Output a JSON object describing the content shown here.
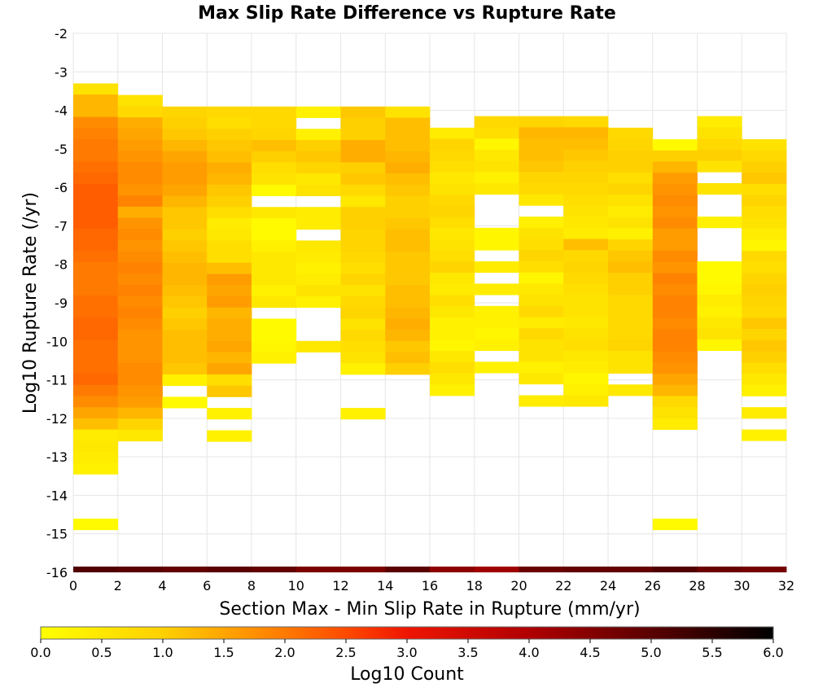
{
  "chart_data": {
    "type": "heatmap",
    "title": "Max Slip Rate Difference vs Rupture Rate",
    "xlabel": "Section Max - Min Slip Rate in Rupture (mm/yr)",
    "ylabel": "Log10 Rupture Rate (/yr)",
    "xlim": [
      0,
      32
    ],
    "ylim": [
      -16,
      -2
    ],
    "x_ticks": [
      "0",
      "2",
      "4",
      "6",
      "8",
      "10",
      "12",
      "14",
      "16",
      "18",
      "20",
      "22",
      "24",
      "26",
      "28",
      "30",
      "32"
    ],
    "y_ticks": [
      "-2",
      "-3",
      "-4",
      "-5",
      "-6",
      "-7",
      "-8",
      "-9",
      "-10",
      "-11",
      "-12",
      "-13",
      "-14",
      "-15",
      "-16"
    ],
    "x_bin_width": 2,
    "y_bin_height": 0.29,
    "grid": true,
    "colorbar": {
      "label": "Log10 Count",
      "min": 0,
      "max": 6,
      "ticks": [
        "0.0",
        "0.5",
        "1.0",
        "1.5",
        "2.0",
        "2.5",
        "3.0",
        "3.5",
        "4.0",
        "4.5",
        "5.0",
        "5.5",
        "6.0"
      ],
      "colors": [
        "#ffff00",
        "#ffd000",
        "#ffa500",
        "#ff7a00",
        "#ff4a00",
        "#ef1500",
        "#b00000",
        "#5a0000",
        "#000000"
      ],
      "stops": [
        0,
        1,
        1.5,
        2,
        2.5,
        3,
        4,
        5,
        6
      ]
    },
    "bottom_row": {
      "y": -16,
      "values": [
        5.1,
        5.0,
        4.9,
        5.0,
        4.9,
        4.6,
        4.6,
        5.0,
        4.4,
        4.2,
        4.8,
        4.9,
        4.9,
        5.1,
        4.8,
        4.7
      ]
    },
    "columns": [
      {
        "x0": 0,
        "top": -3.3,
        "values": [
          0.6,
          1.3,
          1.3,
          1.8,
          1.9,
          2.0,
          2.0,
          2.1,
          2.2,
          2.3,
          2.3,
          2.3,
          2.3,
          2.2,
          2.2,
          2.1,
          2.0,
          2.0,
          2.0,
          2.1,
          2.1,
          2.2,
          2.2,
          2.1,
          2.1,
          2.1,
          2.2,
          2.0,
          1.8,
          1.5,
          1.2,
          0.4,
          0.5,
          0.4,
          0.3
        ],
        "extra": [
          {
            "y": -14.75,
            "v": 0.1
          }
        ]
      },
      {
        "x0": 2,
        "top": -3.6,
        "values": [
          0.6,
          0.8,
          1.4,
          1.5,
          1.6,
          1.7,
          1.8,
          1.8,
          1.7,
          1.9,
          1.4,
          1.7,
          1.8,
          1.7,
          1.8,
          1.9,
          1.8,
          1.9,
          1.8,
          1.9,
          1.8,
          1.7,
          1.7,
          1.7,
          1.8,
          1.8,
          1.7,
          1.6,
          1.3,
          0.9,
          0.5
        ]
      },
      {
        "x0": 4,
        "top": -3.9,
        "values": [
          0.9,
          1.0,
          1.1,
          1.3,
          1.5,
          1.6,
          1.6,
          1.5,
          1.3,
          1.1,
          1.1,
          1.0,
          1.1,
          1.2,
          1.3,
          1.3,
          1.2,
          1.1,
          1.0,
          1.1,
          1.2,
          1.2,
          1.2,
          1.1,
          0.3,
          null,
          0.1
        ]
      },
      {
        "x0": 6,
        "top": -3.9,
        "values": [
          0.8,
          0.7,
          1.0,
          1.1,
          1.2,
          1.4,
          1.3,
          1.1,
          1.0,
          0.7,
          0.4,
          0.5,
          0.7,
          0.7,
          1.2,
          1.6,
          1.5,
          1.6,
          1.3,
          1.4,
          1.4,
          1.5,
          1.3,
          1.5,
          0.7,
          1.1,
          null,
          0.3,
          null,
          0.3
        ]
      },
      {
        "x0": 8,
        "top": -3.9,
        "values": [
          0.8,
          0.8,
          0.9,
          1.2,
          1.0,
          0.7,
          0.6,
          0.1,
          null,
          0.5,
          0.1,
          0.1,
          0.3,
          0.5,
          0.5,
          0.5,
          0.3,
          0.5,
          null,
          0.1,
          0.1,
          0.2,
          0.3
        ]
      },
      {
        "x0": 10,
        "top": -3.9,
        "values": [
          0.3,
          null,
          0.3,
          1.0,
          1.1,
          0.9,
          0.5,
          0.6,
          null,
          0.4,
          0.4,
          null,
          0.5,
          0.4,
          0.3,
          0.4,
          0.6,
          0.3,
          null,
          null,
          null,
          0.5
        ]
      },
      {
        "x0": 12,
        "top": -3.9,
        "values": [
          1.1,
          1.0,
          1.0,
          1.4,
          1.4,
          1.0,
          1.1,
          0.8,
          0.5,
          1.0,
          1.0,
          0.9,
          0.9,
          0.8,
          0.7,
          0.9,
          0.6,
          0.8,
          0.9,
          0.6,
          0.8,
          0.7,
          0.6,
          0.3,
          null,
          null,
          null,
          0.3
        ]
      },
      {
        "x0": 14,
        "top": -3.9,
        "values": [
          0.6,
          1.2,
          1.2,
          1.2,
          1.3,
          1.4,
          1.2,
          1.1,
          1.0,
          1.0,
          1.1,
          1.2,
          1.2,
          1.1,
          1.1,
          1.1,
          1.2,
          1.2,
          1.3,
          1.4,
          1.3,
          1.1,
          1.2,
          1.0
        ]
      },
      {
        "x0": 16,
        "top": -4.45,
        "values": [
          0.4,
          0.9,
          0.8,
          0.7,
          0.5,
          0.6,
          0.8,
          0.9,
          0.7,
          0.5,
          0.6,
          0.7,
          0.9,
          0.5,
          0.4,
          0.7,
          0.5,
          0.3,
          0.3,
          0.2,
          0.5,
          0.7,
          0.5,
          0.3
        ]
      },
      {
        "x0": 18,
        "top": -4.15,
        "values": [
          0.8,
          0.7,
          0.2,
          0.5,
          0.6,
          0.3,
          0.5,
          null,
          null,
          null,
          0.2,
          0.2,
          null,
          0.4,
          null,
          0.4,
          null,
          0.3,
          0.3,
          0.2,
          0.3,
          null,
          0.3
        ]
      },
      {
        "x0": 20,
        "top": -4.15,
        "values": [
          0.9,
          1.3,
          1.2,
          1.2,
          1.1,
          0.9,
          0.8,
          0.5,
          null,
          0.3,
          0.6,
          0.7,
          0.9,
          0.7,
          0.2,
          0.5,
          0.6,
          0.8,
          0.4,
          0.8,
          0.6,
          0.6,
          0.3,
          0.5,
          null,
          0.4
        ]
      },
      {
        "x0": 22,
        "top": -4.15,
        "values": [
          0.8,
          1.3,
          1.2,
          1.1,
          1.0,
          0.9,
          0.8,
          0.7,
          0.6,
          0.5,
          0.4,
          1.2,
          0.8,
          0.9,
          0.8,
          0.7,
          0.6,
          0.6,
          0.5,
          0.6,
          0.7,
          0.5,
          0.4,
          0.2,
          0.3,
          0.5
        ]
      },
      {
        "x0": 24,
        "top": -4.45,
        "values": [
          0.8,
          0.9,
          1.0,
          1.0,
          0.7,
          0.9,
          0.6,
          0.4,
          0.6,
          0.3,
          0.9,
          1.1,
          1.2,
          1.0,
          1.0,
          0.8,
          0.8,
          0.8,
          0.8,
          0.9,
          0.6,
          0.6,
          null,
          0.5
        ]
      },
      {
        "x0": 26,
        "top": -4.75,
        "values": [
          0.1,
          1.0,
          1.3,
          1.6,
          1.7,
          1.8,
          1.7,
          1.8,
          1.6,
          1.6,
          1.8,
          1.7,
          1.9,
          1.8,
          1.9,
          1.9,
          1.8,
          1.9,
          1.9,
          1.8,
          1.7,
          1.5,
          1.3,
          0.8,
          0.6,
          0.4
        ],
        "extra": [
          {
            "y": -14.75,
            "v": 0.1
          }
        ]
      },
      {
        "x0": 28,
        "top": -4.15,
        "values": [
          0.4,
          0.6,
          0.8,
          1.0,
          0.6,
          null,
          0.6,
          null,
          null,
          0.3,
          null,
          null,
          null,
          0.1,
          0.1,
          0.2,
          0.4,
          0.3,
          0.5,
          0.6,
          0.2
        ]
      },
      {
        "x0": 30,
        "top": -4.75,
        "values": [
          0.6,
          0.8,
          1.0,
          1.1,
          0.7,
          0.9,
          0.7,
          0.6,
          0.4,
          0.2,
          0.8,
          0.7,
          0.9,
          1.0,
          0.9,
          0.8,
          1.1,
          0.9,
          1.1,
          1.0,
          0.7,
          0.5,
          0.3,
          null,
          0.4,
          null,
          0.3
        ]
      }
    ]
  }
}
